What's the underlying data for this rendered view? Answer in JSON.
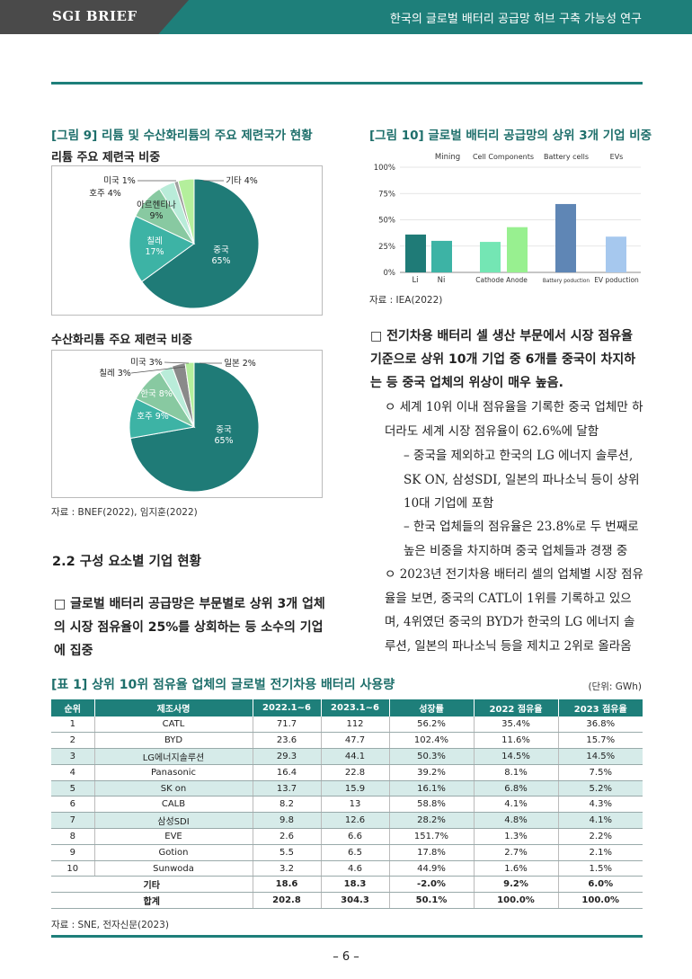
{
  "header": {
    "brand": "SGI BRIEF",
    "title": "한국의 글로벌 배터리 공급망 허브 구축 가능성 연구"
  },
  "fig9": {
    "caption": "[그림 9] 리튬 및 수산화리튬의 주요 제련국가 현황",
    "pie1_title": "리튬 주요 제련국 비중",
    "pie2_title": "수산화리튬 주요 제련국 비중",
    "source": "자료 : BNEF(2022), 임지훈(2022)"
  },
  "fig10": {
    "caption": "[그림 10] 글로벌 배터리 공급망의 상위 3개 기업 비중",
    "source": "자료 : IEA(2022)"
  },
  "chart_data": [
    {
      "type": "pie",
      "labels": [
        "중국",
        "칠레",
        "아르헨티나",
        "호주",
        "미국",
        "기타"
      ],
      "values": [
        65,
        17,
        9,
        4,
        1,
        4
      ],
      "display_labels": [
        "중국\n65%",
        "칠레\n17%",
        "아르헨티나\n9%",
        "호주 4%",
        "미국 1%",
        "기타 4%"
      ],
      "colors": [
        "#1f7b77",
        "#3db3a5",
        "#88c9a1",
        "#b9ecd9",
        "#a0a0a0",
        "#b4ef9c"
      ]
    },
    {
      "type": "pie",
      "labels": [
        "중국",
        "호주",
        "한국",
        "칠레",
        "미국",
        "일본"
      ],
      "values": [
        65,
        9,
        8,
        3,
        3,
        2
      ],
      "display_labels": [
        "중국\n65%",
        "호주 9%",
        "한국 8%",
        "칠레 3%",
        "미국 3%",
        "일본 2%"
      ],
      "colors": [
        "#1f7b77",
        "#3db3a5",
        "#88c9a1",
        "#b9ecd9",
        "#8a8a8a",
        "#b4ef9c"
      ]
    },
    {
      "type": "bar",
      "groups": [
        "Mining",
        "Cell Components",
        "Battery cells",
        "EVs"
      ],
      "categories": [
        "Li",
        "Ni",
        "Cathode",
        "Anode",
        "Battery poduction",
        "EV poduction"
      ],
      "values": [
        36,
        30,
        29,
        43,
        65,
        34
      ],
      "colors": [
        "#1f7b77",
        "#3db3a5",
        "#74e6b4",
        "#98f090",
        "#5f86b5",
        "#a6c8ee"
      ],
      "yticks": [
        "100%",
        "75%",
        "50%",
        "25%",
        "0%"
      ],
      "ylim": [
        0,
        100
      ]
    }
  ],
  "section": {
    "title": "2.2 구성 요소별 기업 현황"
  },
  "left_bullet": "□ 글로벌 배터리 공급망은 부문별로 상위 3개 업체의 시장 점유율이 25%를 상회하는 등 소수의 기업에 집중",
  "right": {
    "b1": "□ 전기차용 배터리 셀 생산 부문에서 시장 점유율 기준으로 상위 10개 기업 중 6개를 중국이 차지하는 등 중국 업체의 위상이 매우 높음.",
    "o1": "ㅇ 세계 10위 이내 점유율을 기록한 중국 업체만 하더라도 세계 시장 점유율이 62.6%에 달함",
    "d1": "– 중국을 제외하고 한국의 LG 에너지 솔루션, SK ON, 삼성SDI, 일본의 파나소닉 등이 상위 10대 기업에 포함",
    "d2": "– 한국 업체들의 점유율은 23.8%로 두 번째로 높은 비중을 차지하며 중국 업체들과 경쟁 중",
    "o2": "ㅇ 2023년 전기차용 배터리 셀의 업체별 시장 점유율을 보면, 중국의 CATL이 1위를 기록하고 있으며, 4위였던 중국의 BYD가 한국의 LG 에너지 솔루션, 일본의 파나소닉 등을 제치고 2위로 올라옴"
  },
  "table": {
    "caption": "[표 1] 상위 10위 점유율 업체의 글로벌 전기차용 배터리 사용량",
    "unit": "(단위: GWh)",
    "headers": [
      "순위",
      "제조사명",
      "2022.1~6",
      "2023.1~6",
      "성장률",
      "2022 점유율",
      "2023 점유율"
    ],
    "rows": [
      [
        "1",
        "CATL",
        "71.7",
        "112",
        "56.2%",
        "35.4%",
        "36.8%"
      ],
      [
        "2",
        "BYD",
        "23.6",
        "47.7",
        "102.4%",
        "11.6%",
        "15.7%"
      ],
      [
        "3",
        "LG에너지솔루션",
        "29.3",
        "44.1",
        "50.3%",
        "14.5%",
        "14.5%"
      ],
      [
        "4",
        "Panasonic",
        "16.4",
        "22.8",
        "39.2%",
        "8.1%",
        "7.5%"
      ],
      [
        "5",
        "SK on",
        "13.7",
        "15.9",
        "16.1%",
        "6.8%",
        "5.2%"
      ],
      [
        "6",
        "CALB",
        "8.2",
        "13",
        "58.8%",
        "4.1%",
        "4.3%"
      ],
      [
        "7",
        "삼성SDI",
        "9.8",
        "12.6",
        "28.2%",
        "4.8%",
        "4.1%"
      ],
      [
        "8",
        "EVE",
        "2.6",
        "6.6",
        "151.7%",
        "1.3%",
        "2.2%"
      ],
      [
        "9",
        "Gotion",
        "5.5",
        "6.5",
        "17.8%",
        "2.7%",
        "2.1%"
      ],
      [
        "10",
        "Sunwoda",
        "3.2",
        "4.6",
        "44.9%",
        "1.6%",
        "1.5%"
      ]
    ],
    "other": [
      "기타",
      "18.6",
      "18.3",
      "-2.0%",
      "9.2%",
      "6.0%"
    ],
    "total": [
      "합계",
      "202.8",
      "304.3",
      "50.1%",
      "100.0%",
      "100.0%"
    ],
    "source": "자료 : SNE, 전자신문(2023)"
  },
  "page": "–  6  –"
}
